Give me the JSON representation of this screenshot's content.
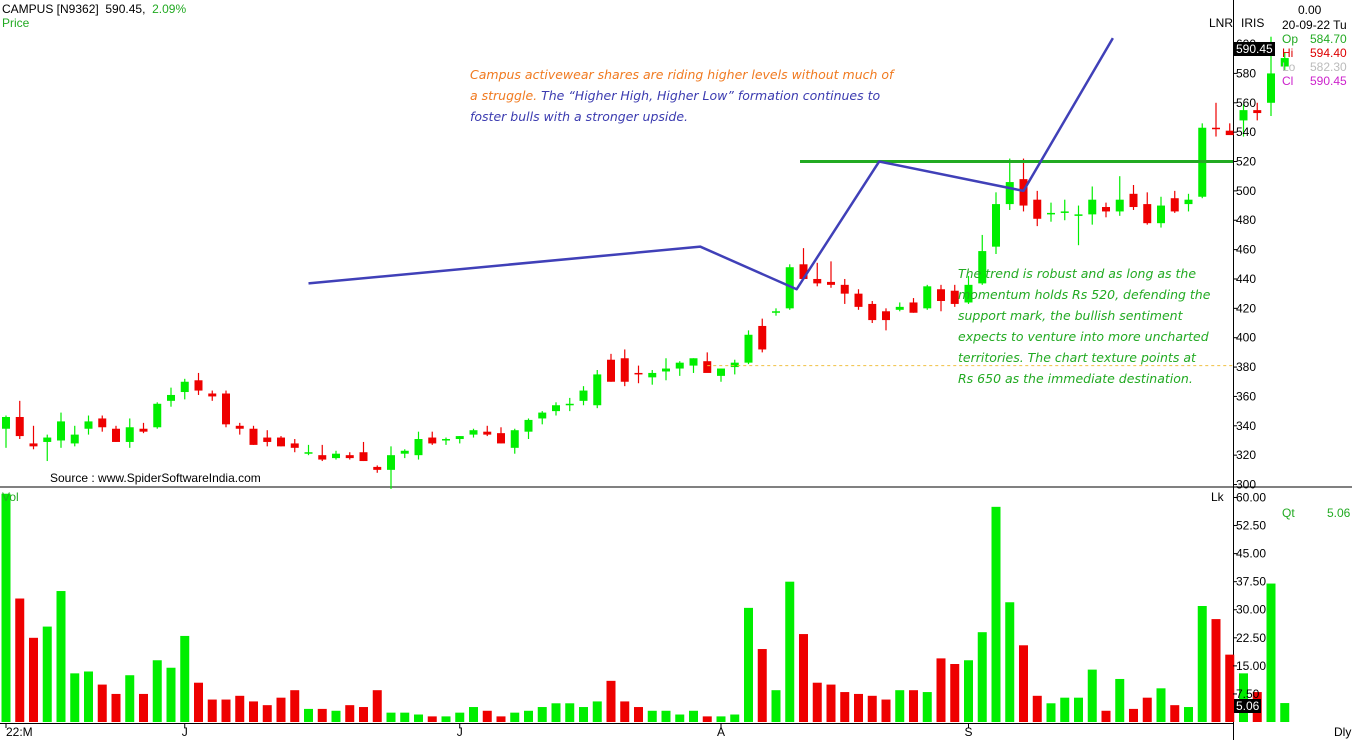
{
  "header": {
    "symbol": "CAMPUS [N9362]",
    "price": "590.45,",
    "change": "2.09%",
    "series_label": "Price",
    "lnr_label": "LNR",
    "iris_label": "IRIS",
    "value_top": "0.00",
    "date": "20-09-22 Tu"
  },
  "ohlc": {
    "op_label": "Op",
    "op": "584.70",
    "hi_label": "Hi",
    "hi": "594.40",
    "lo_label": "Lo",
    "lo": "582.30",
    "cl_label": "Cl",
    "cl": "590.45"
  },
  "annotation_1": {
    "part1": "Campus activewear shares are riding higher levels without much of a struggle.",
    "part2": "The “Higher High, Higher Low” formation continues to foster bulls with a stronger upside."
  },
  "annotation_2": "The trend is robust and as long as the momentum holds Rs 520, defending the support mark, the bullish sentiment expects to venture into more uncharted territories. The chart texture points at Rs 650 as the immediate destination.",
  "source": "Source : www.SpiderSoftwareIndia.com",
  "volume_panel": {
    "label": "Vol",
    "lk": "Lk",
    "qt_label": "Qt",
    "qt_value": "5.06",
    "dly": "Dly"
  },
  "colors": {
    "up": "#00ee00",
    "down": "#ee0000",
    "trend": "#4040b8",
    "support": "#22aa22",
    "text_green": "#22aa22",
    "text_orange": "#f07a20"
  },
  "chart_data": {
    "type": "candlestick",
    "price_axis": {
      "ticks": [
        300,
        320,
        340,
        360,
        380,
        400,
        420,
        440,
        460,
        480,
        500,
        520,
        540,
        560,
        580,
        600
      ],
      "range": [
        299,
        630
      ]
    },
    "volume_axis": {
      "ticks": [
        "7.50",
        "15.00",
        "22.50",
        "30.00",
        "37.50",
        "45.00",
        "52.50",
        "60.00"
      ],
      "range": [
        0,
        62
      ]
    },
    "x_labels": [
      {
        "label": "22:M",
        "index": 0
      },
      {
        "label": "J",
        "index": 13
      },
      {
        "label": "J",
        "index": 33
      },
      {
        "label": "A",
        "index": 52
      },
      {
        "label": "S",
        "index": 70
      }
    ],
    "last_price_tag": "590.45",
    "last_volume_tag": "5.06",
    "support_level": 520,
    "reference_level": 381,
    "trendline": [
      {
        "i": 22,
        "p": 437
      },
      {
        "i": 50.5,
        "p": 462
      },
      {
        "i": 57.5,
        "p": 433
      },
      {
        "i": 63.5,
        "p": 520
      },
      {
        "i": 74,
        "p": 500
      },
      {
        "i": 80.5,
        "p": 604
      }
    ],
    "candles": [
      {
        "o": 338,
        "h": 347,
        "l": 325,
        "c": 346,
        "v": 61
      },
      {
        "o": 346,
        "h": 357,
        "l": 331,
        "c": 333,
        "v": 33
      },
      {
        "o": 328,
        "h": 340,
        "l": 324,
        "c": 326,
        "v": 22.5
      },
      {
        "o": 329,
        "h": 334,
        "l": 316,
        "c": 332,
        "v": 25.5
      },
      {
        "o": 330,
        "h": 349,
        "l": 325,
        "c": 343,
        "v": 35
      },
      {
        "o": 328,
        "h": 340,
        "l": 326,
        "c": 334,
        "v": 13
      },
      {
        "o": 338,
        "h": 347,
        "l": 334,
        "c": 343,
        "v": 13.5
      },
      {
        "o": 345,
        "h": 347,
        "l": 336,
        "c": 339,
        "v": 10
      },
      {
        "o": 338,
        "h": 340,
        "l": 329,
        "c": 329,
        "v": 7.5
      },
      {
        "o": 329,
        "h": 345,
        "l": 325,
        "c": 339,
        "v": 12.5
      },
      {
        "o": 338,
        "h": 342,
        "l": 335,
        "c": 336,
        "v": 7.5
      },
      {
        "o": 339,
        "h": 356,
        "l": 338,
        "c": 355,
        "v": 16.5
      },
      {
        "o": 357,
        "h": 366,
        "l": 353,
        "c": 361,
        "v": 14.5
      },
      {
        "o": 363,
        "h": 372,
        "l": 358,
        "c": 370,
        "v": 23
      },
      {
        "o": 371,
        "h": 376,
        "l": 361,
        "c": 364,
        "v": 10.5
      },
      {
        "o": 362,
        "h": 364,
        "l": 357,
        "c": 360,
        "v": 6
      },
      {
        "o": 362,
        "h": 364,
        "l": 339,
        "c": 341,
        "v": 6
      },
      {
        "o": 340,
        "h": 342,
        "l": 334,
        "c": 338,
        "v": 7
      },
      {
        "o": 338,
        "h": 340,
        "l": 327,
        "c": 327,
        "v": 5.5
      },
      {
        "o": 332,
        "h": 337,
        "l": 326,
        "c": 329,
        "v": 4.5
      },
      {
        "o": 332,
        "h": 333,
        "l": 326,
        "c": 326,
        "v": 6.5
      },
      {
        "o": 328,
        "h": 331,
        "l": 322,
        "c": 325,
        "v": 8.5
      },
      {
        "o": 322,
        "h": 327,
        "l": 320,
        "c": 322,
        "v": 3.5
      },
      {
        "o": 320,
        "h": 327,
        "l": 316,
        "c": 317,
        "v": 3.5
      },
      {
        "o": 318,
        "h": 323,
        "l": 317,
        "c": 321,
        "v": 3
      },
      {
        "o": 320,
        "h": 322,
        "l": 317,
        "c": 318,
        "v": 4.5
      },
      {
        "o": 322,
        "h": 329,
        "l": 316,
        "c": 316,
        "v": 4
      },
      {
        "o": 312,
        "h": 313,
        "l": 308,
        "c": 310,
        "v": 8.5
      },
      {
        "o": 310,
        "h": 326,
        "l": 297,
        "c": 320,
        "v": 2.5
      },
      {
        "o": 321,
        "h": 324,
        "l": 318,
        "c": 323,
        "v": 2.5
      },
      {
        "o": 320,
        "h": 336,
        "l": 317,
        "c": 331,
        "v": 2
      },
      {
        "o": 332,
        "h": 336,
        "l": 327,
        "c": 328,
        "v": 1.5
      },
      {
        "o": 330,
        "h": 332,
        "l": 327,
        "c": 331,
        "v": 1.5
      },
      {
        "o": 331,
        "h": 333,
        "l": 328,
        "c": 333,
        "v": 2.5
      },
      {
        "o": 334,
        "h": 338,
        "l": 332,
        "c": 337,
        "v": 4
      },
      {
        "o": 336,
        "h": 340,
        "l": 333,
        "c": 334,
        "v": 3
      },
      {
        "o": 335,
        "h": 339,
        "l": 328,
        "c": 328,
        "v": 1.5
      },
      {
        "o": 325,
        "h": 338,
        "l": 321,
        "c": 337,
        "v": 2.5
      },
      {
        "o": 336,
        "h": 345,
        "l": 331,
        "c": 344,
        "v": 3
      },
      {
        "o": 345,
        "h": 350,
        "l": 341,
        "c": 349,
        "v": 4
      },
      {
        "o": 350,
        "h": 356,
        "l": 347,
        "c": 354,
        "v": 5
      },
      {
        "o": 354,
        "h": 359,
        "l": 350,
        "c": 355,
        "v": 5
      },
      {
        "o": 357,
        "h": 367,
        "l": 354,
        "c": 364,
        "v": 4
      },
      {
        "o": 354,
        "h": 378,
        "l": 352,
        "c": 375,
        "v": 5.5
      },
      {
        "o": 385,
        "h": 389,
        "l": 370,
        "c": 370,
        "v": 11
      },
      {
        "o": 386,
        "h": 392,
        "l": 367,
        "c": 370,
        "v": 5.5
      },
      {
        "o": 376,
        "h": 381,
        "l": 369,
        "c": 375,
        "v": 4
      },
      {
        "o": 373,
        "h": 378,
        "l": 368,
        "c": 376,
        "v": 3
      },
      {
        "o": 377,
        "h": 386,
        "l": 371,
        "c": 379,
        "v": 3
      },
      {
        "o": 379,
        "h": 384,
        "l": 374,
        "c": 383,
        "v": 2
      },
      {
        "o": 381,
        "h": 386,
        "l": 376,
        "c": 386,
        "v": 3
      },
      {
        "o": 384,
        "h": 390,
        "l": 378,
        "c": 376,
        "v": 1.5
      },
      {
        "o": 374,
        "h": 379,
        "l": 370,
        "c": 379,
        "v": 1.5
      },
      {
        "o": 380,
        "h": 385,
        "l": 375,
        "c": 383,
        "v": 2
      },
      {
        "o": 383,
        "h": 405,
        "l": 382,
        "c": 402,
        "v": 30.5
      },
      {
        "o": 408,
        "h": 413,
        "l": 390,
        "c": 392,
        "v": 19.5
      },
      {
        "o": 417,
        "h": 420,
        "l": 415,
        "c": 418,
        "v": 8.5
      },
      {
        "o": 420,
        "h": 450,
        "l": 419,
        "c": 448,
        "v": 37.5
      },
      {
        "o": 450,
        "h": 461,
        "l": 440,
        "c": 440,
        "v": 23.5
      },
      {
        "o": 440,
        "h": 451,
        "l": 435,
        "c": 437,
        "v": 10.5
      },
      {
        "o": 438,
        "h": 452,
        "l": 434,
        "c": 436,
        "v": 10
      },
      {
        "o": 436,
        "h": 440,
        "l": 423,
        "c": 430,
        "v": 8
      },
      {
        "o": 430,
        "h": 433,
        "l": 419,
        "c": 421,
        "v": 7.5
      },
      {
        "o": 423,
        "h": 425,
        "l": 410,
        "c": 412,
        "v": 7
      },
      {
        "o": 418,
        "h": 420,
        "l": 405,
        "c": 412,
        "v": 6
      },
      {
        "o": 419,
        "h": 424,
        "l": 418,
        "c": 421,
        "v": 8.5
      },
      {
        "o": 424,
        "h": 427,
        "l": 417,
        "c": 417,
        "v": 8.5
      },
      {
        "o": 420,
        "h": 436,
        "l": 419,
        "c": 435,
        "v": 8
      },
      {
        "o": 433,
        "h": 436,
        "l": 418,
        "c": 425,
        "v": 17
      },
      {
        "o": 432,
        "h": 436,
        "l": 421,
        "c": 423,
        "v": 15.5
      },
      {
        "o": 424,
        "h": 442,
        "l": 423,
        "c": 436,
        "v": 16.5
      },
      {
        "o": 437,
        "h": 470,
        "l": 436,
        "c": 459,
        "v": 24
      },
      {
        "o": 462,
        "h": 499,
        "l": 457,
        "c": 491,
        "v": 57.5
      },
      {
        "o": 491,
        "h": 522,
        "l": 487,
        "c": 506,
        "v": 32
      },
      {
        "o": 508,
        "h": 522,
        "l": 486,
        "c": 490,
        "v": 20.5
      },
      {
        "o": 494,
        "h": 500,
        "l": 476,
        "c": 481,
        "v": 7
      },
      {
        "o": 484,
        "h": 492,
        "l": 479,
        "c": 485,
        "v": 5
      },
      {
        "o": 485,
        "h": 494,
        "l": 480,
        "c": 486,
        "v": 6.5
      },
      {
        "o": 484,
        "h": 490,
        "l": 463,
        "c": 484,
        "v": 6.5
      },
      {
        "o": 484,
        "h": 503,
        "l": 477,
        "c": 494,
        "v": 14
      },
      {
        "o": 489,
        "h": 492,
        "l": 482,
        "c": 486,
        "v": 3
      },
      {
        "o": 486,
        "h": 510,
        "l": 483,
        "c": 494,
        "v": 11.5
      },
      {
        "o": 498,
        "h": 504,
        "l": 487,
        "c": 489,
        "v": 3.5
      },
      {
        "o": 491,
        "h": 499,
        "l": 477,
        "c": 478,
        "v": 6.5
      },
      {
        "o": 478,
        "h": 496,
        "l": 475,
        "c": 490,
        "v": 9
      },
      {
        "o": 495,
        "h": 500,
        "l": 485,
        "c": 486,
        "v": 4.5
      },
      {
        "o": 491,
        "h": 498,
        "l": 486,
        "c": 494,
        "v": 4
      },
      {
        "o": 496,
        "h": 546,
        "l": 495,
        "c": 543,
        "v": 31
      },
      {
        "o": 543,
        "h": 560,
        "l": 537,
        "c": 542,
        "v": 27.5
      },
      {
        "o": 541,
        "h": 546,
        "l": 539,
        "c": 538,
        "v": 18
      },
      {
        "o": 548,
        "h": 559,
        "l": 537,
        "c": 555,
        "v": 13
      },
      {
        "o": 555,
        "h": 560,
        "l": 548,
        "c": 553,
        "v": 8
      },
      {
        "o": 560,
        "h": 605,
        "l": 551,
        "c": 580,
        "v": 37
      },
      {
        "o": 584.7,
        "h": 594.4,
        "l": 582.3,
        "c": 590.45,
        "v": 5.06
      }
    ]
  }
}
